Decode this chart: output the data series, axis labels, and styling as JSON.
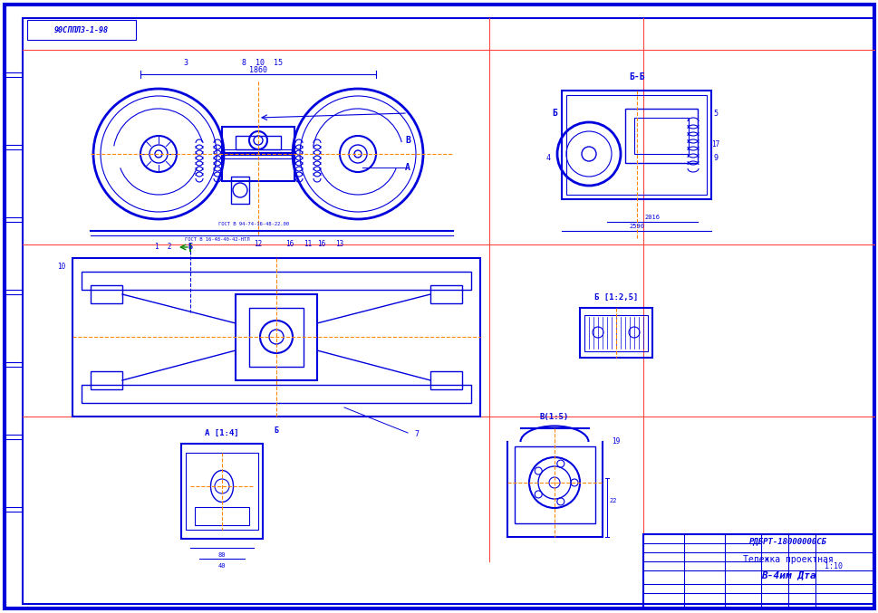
{
  "bg_color": "#ffffff",
  "border_outer_color": "#0000cc",
  "border_inner_color": "#0000cc",
  "drawing_color": "#0000dd",
  "red_line_color": "#ff4444",
  "orange_line_color": "#ff8800",
  "title_block_color": "#0000cc",
  "title_text": "РДБРТ-18000000СБ",
  "subtitle_text": "Тележка проектная",
  "designer_text": "В-4им Дта",
  "stamp_text": "90СППЛ3-1-98",
  "scale": "1:10",
  "fig_width": 9.7,
  "fig_height": 6.77,
  "dpi": 100
}
